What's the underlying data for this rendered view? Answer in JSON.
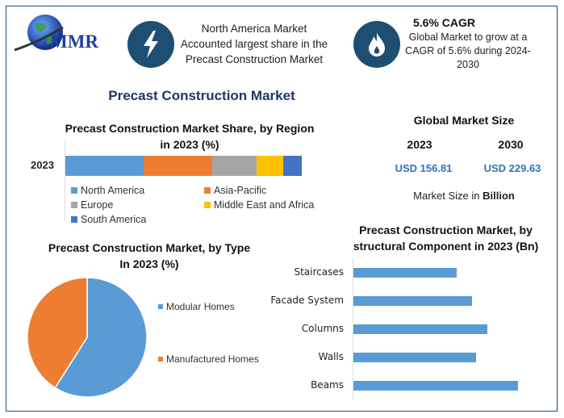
{
  "logo": {
    "text": "MMR"
  },
  "header": {
    "highlight1": {
      "icon": "lightning-bolt-icon",
      "lines": [
        "North America Market",
        "Accounted largest share in the",
        "Precast Construction Market"
      ]
    },
    "highlight2": {
      "icon": "flame-icon",
      "title": "5.6% CAGR",
      "lines": [
        "Global Market to grow at a",
        "CAGR of 5.6% during 2024-",
        "2030"
      ]
    }
  },
  "main_title": "Precast Construction Market",
  "market_size": {
    "title": "Global Market Size",
    "years": [
      "2023",
      "2030"
    ],
    "values": [
      "USD 156.81",
      "USD 229.63"
    ],
    "note_prefix": "Market Size in ",
    "note_bold": "Billion",
    "value_color": "#2e75b6"
  },
  "chart_data": [
    {
      "type": "bar",
      "orientation": "horizontal-stacked",
      "title": "Precast Construction Market Share, by Region in 2023 (%)",
      "title_lines": [
        "Precast Construction Market Share, by Region",
        "in 2023 (%)"
      ],
      "categories": [
        "2023"
      ],
      "series": [
        {
          "name": "North America",
          "values": [
            33
          ],
          "color": "#5b9bd5"
        },
        {
          "name": "Asia-Pacific",
          "values": [
            29
          ],
          "color": "#ed7d31"
        },
        {
          "name": "Europe",
          "values": [
            19
          ],
          "color": "#a5a5a5"
        },
        {
          "name": "Middle East and Africa",
          "values": [
            11
          ],
          "color": "#ffc000"
        },
        {
          "name": "South America",
          "values": [
            8
          ],
          "color": "#4472c4"
        }
      ],
      "legend": "bottom"
    },
    {
      "type": "pie",
      "title": "Precast Construction Market, by Type In 2023 (%)",
      "title_lines": [
        "Precast Construction Market, by Type",
        "In 2023 (%)"
      ],
      "labels": [
        "Modular Homes",
        "Manufactured Homes"
      ],
      "values": [
        59,
        41
      ],
      "colors": [
        "#5b9bd5",
        "#ed7d31"
      ],
      "legend": "right"
    },
    {
      "type": "bar",
      "orientation": "horizontal",
      "title": "Precast Construction Market, by structural Component in 2023 (Bn)",
      "title_lines": [
        "Precast Construction Market, by",
        "structural Component  in 2023 (Bn)"
      ],
      "categories": [
        "Staircases",
        "Facade System",
        "Columns",
        "Walls",
        "Beams"
      ],
      "values": [
        12.8,
        14.7,
        16.6,
        15.2,
        20.4
      ],
      "color": "#5b9bd5"
    }
  ]
}
